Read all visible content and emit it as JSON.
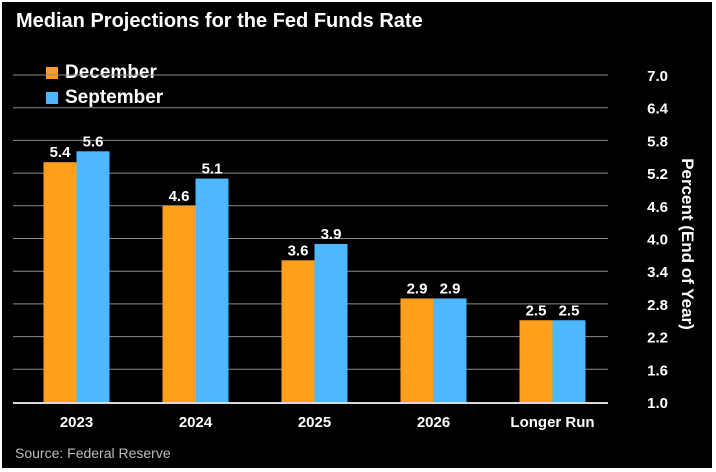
{
  "title": "Median Projections for the Fed Funds Rate",
  "source": "Source: Federal Reserve",
  "colors": {
    "background": "#000000",
    "december": "#ff9f1c",
    "september": "#4db8ff",
    "text": "#ffffff",
    "grid": "#8c8c8c"
  },
  "chart_data": {
    "type": "bar",
    "categories": [
      "2023",
      "2024",
      "2025",
      "2026",
      "Longer Run"
    ],
    "series": [
      {
        "name": "December",
        "values": [
          5.4,
          4.6,
          3.6,
          2.9,
          2.5
        ],
        "labels": [
          "5.4",
          "4.6",
          "3.6",
          "2.9",
          "2.5"
        ]
      },
      {
        "name": "September",
        "values": [
          5.6,
          5.1,
          3.9,
          2.9,
          2.5
        ],
        "labels": [
          "5.6",
          "5.1",
          "3.9",
          "2.9",
          "2.5"
        ]
      }
    ],
    "ylabel": "Percent (End of Year)",
    "ylim": [
      1.0,
      7.0
    ],
    "yticks": [
      "1.0",
      "1.6",
      "2.2",
      "2.8",
      "3.4",
      "4.0",
      "4.6",
      "5.2",
      "5.8",
      "6.4",
      "7.0"
    ],
    "y_axis_side": "right",
    "grid": true,
    "legend": "top-left"
  }
}
